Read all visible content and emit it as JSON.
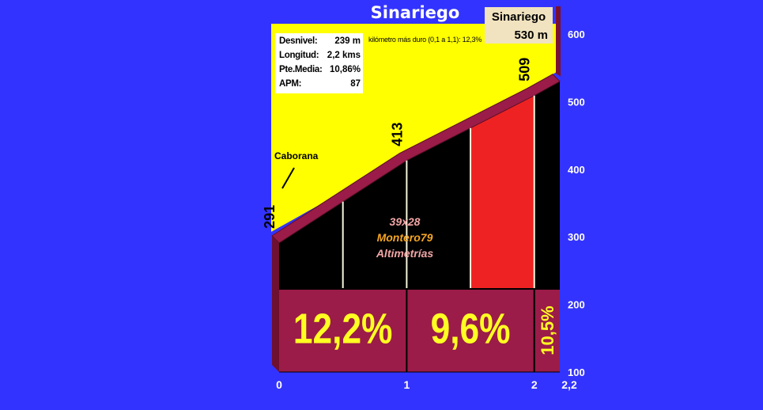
{
  "title": "Sinariego",
  "peak": {
    "name": "Sinariego",
    "altitude": "530 m"
  },
  "stats": [
    {
      "label": "Desnivel:",
      "value": "239 m"
    },
    {
      "label": "Longitud:",
      "value": "2,2 kms"
    },
    {
      "label": "Pte.Media:",
      "value": "10,86%"
    },
    {
      "label": "APM:",
      "value": "87"
    }
  ],
  "hardest_km": "kilómetro más duro (0,1 a 1,1):  12,3%",
  "place_label": "Caborana",
  "credits": [
    "39x28",
    "Montero79",
    "Altimetrías"
  ],
  "colors": {
    "background": "#3333ff",
    "sky": "#ffff00",
    "slope_black": "#000000",
    "slope_red": "#ee2222",
    "base": "#9b1c48"
  },
  "chart_data": {
    "type": "area",
    "xlabel": "",
    "ylabel": "",
    "xlim": [
      0,
      2.2
    ],
    "ylim": [
      100,
      600
    ],
    "x_ticks": [
      "0",
      "1",
      "2",
      "2,2"
    ],
    "y_ticks": [
      "100",
      "200",
      "300",
      "400",
      "500",
      "600"
    ],
    "profile": {
      "x": [
        0,
        0.5,
        1,
        1.5,
        2,
        2.2
      ],
      "y": [
        291,
        352,
        413,
        461,
        509,
        530
      ]
    },
    "altitude_labels": [
      {
        "x": 0,
        "value": "291"
      },
      {
        "x": 1,
        "value": "413"
      },
      {
        "x": 2,
        "value": "509"
      }
    ],
    "segments": [
      {
        "x0": 0,
        "x1": 1,
        "gradient": "12,2%",
        "color": "#000000"
      },
      {
        "x0": 1,
        "x1": 2,
        "gradient": "9,6%",
        "color": "#000000"
      },
      {
        "x0": 2,
        "x1": 2.2,
        "gradient": "10,5%",
        "color": "#000000"
      }
    ],
    "highlight": {
      "x0": 1.5,
      "x1": 2,
      "color": "#ee2222"
    }
  }
}
